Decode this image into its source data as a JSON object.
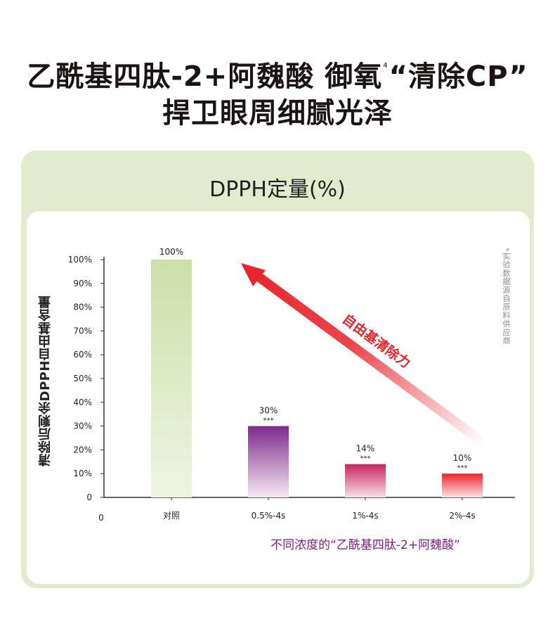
{
  "headline": {
    "line1_a": "乙酰基四肽-2+阿魏酸 御氧",
    "line1_sup": "4",
    "line1_b": "“清除CP”",
    "line2": "捍卫眼周细腻光泽"
  },
  "chart_heading": "DPPH定量(%)",
  "side_note": "*实验数据源自原料供应商",
  "footer_label": "不同浓度的“乙酰基四肽-2+阿魏酸”",
  "arrow_label": "自由基清除力",
  "colors": {
    "outer_card": "#e3ebcf",
    "arrow": "#e8242c",
    "bar_control": "#cddfa8",
    "bar_1": "#7d2a8c",
    "bar_2": "#c8245e",
    "bar_3": "#f0242a",
    "footer_text": "#7b1f7f"
  },
  "chart_data": {
    "type": "bar",
    "ylabel": "清除后剩余DPPH自由基含量",
    "origin_label": "0",
    "categories": [
      "对照",
      "0.5%-4s",
      "1%-4s",
      "2%-4s"
    ],
    "values": [
      100,
      30,
      14,
      10
    ],
    "data_labels": [
      "100%",
      "30%",
      "14%",
      "10%"
    ],
    "significance": [
      "",
      "***",
      "***",
      "***"
    ],
    "ylim": [
      0,
      100
    ],
    "yticks": [
      0,
      10,
      20,
      30,
      40,
      50,
      60,
      70,
      80,
      90,
      100
    ],
    "ytick_labels": [
      "0",
      "10%",
      "20%",
      "30%",
      "40%",
      "50%",
      "60%",
      "70%",
      "80%",
      "90%",
      "100%"
    ],
    "grid": false,
    "legend": "none"
  }
}
